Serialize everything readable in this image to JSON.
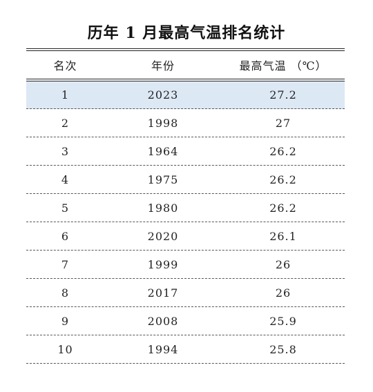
{
  "title": "历年 1 月最高气温排名统计",
  "columns": {
    "rank": "名次",
    "year": "年份",
    "temp": "最高气温  （℃）"
  },
  "rows": [
    {
      "rank": "1",
      "year": "2023",
      "temp": "27.2"
    },
    {
      "rank": "2",
      "year": "1998",
      "temp": "27"
    },
    {
      "rank": "3",
      "year": "1964",
      "temp": "26.2"
    },
    {
      "rank": "4",
      "year": "1975",
      "temp": "26.2"
    },
    {
      "rank": "5",
      "year": "1980",
      "temp": "26.2"
    },
    {
      "rank": "6",
      "year": "2020",
      "temp": "26.1"
    },
    {
      "rank": "7",
      "year": "1999",
      "temp": "26"
    },
    {
      "rank": "8",
      "year": "2017",
      "temp": "26"
    },
    {
      "rank": "9",
      "year": "2008",
      "temp": "25.9"
    },
    {
      "rank": "10",
      "year": "1994",
      "temp": "25.8"
    }
  ],
  "colors": {
    "highlight_row": "#dde8f5",
    "rule": "#222222"
  }
}
